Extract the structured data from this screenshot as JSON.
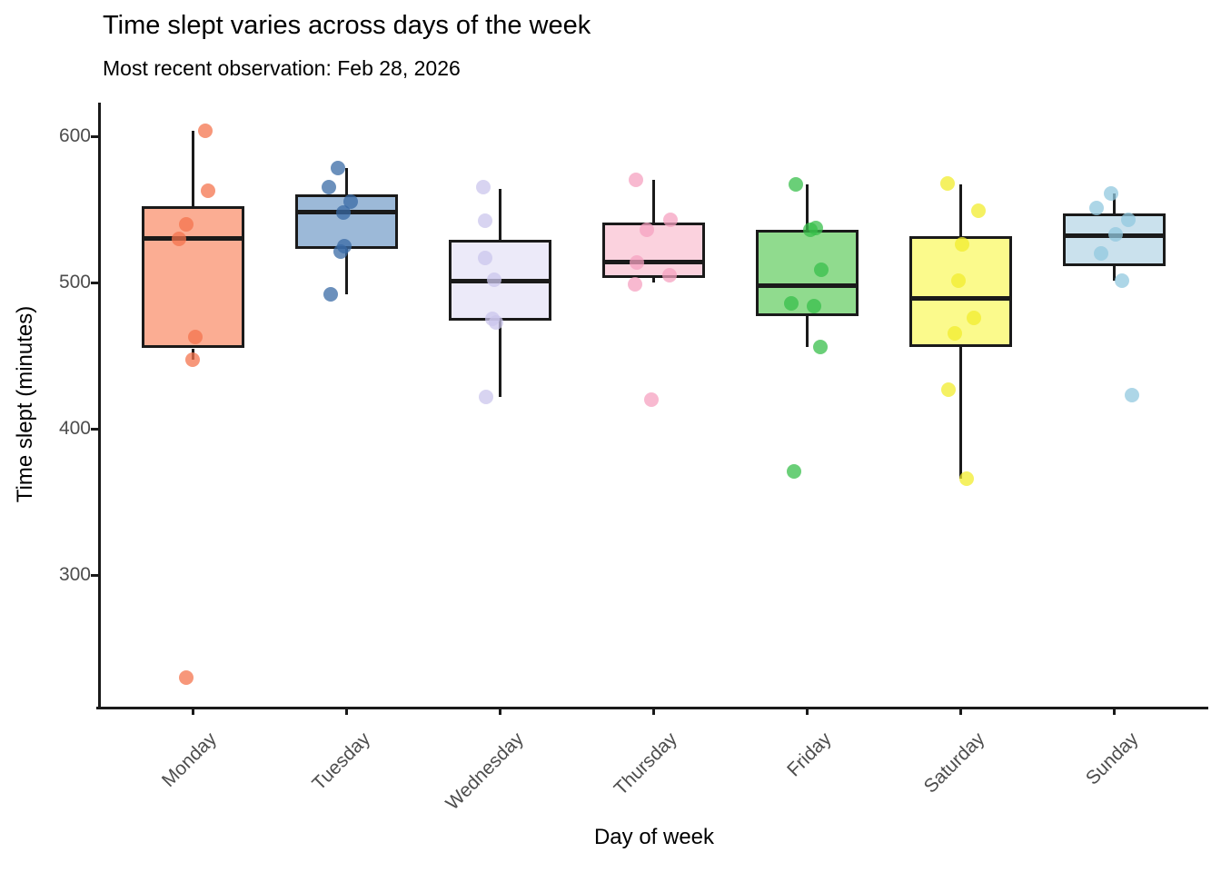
{
  "chart_data": {
    "type": "boxplot",
    "title": "Time slept varies across days of the week",
    "subtitle": "Most recent observation: Feb 28, 2026",
    "xlabel": "Day of week",
    "ylabel": "Time slept (minutes)",
    "ylim": [
      210,
      623
    ],
    "yticks": [
      300,
      400,
      500,
      600
    ],
    "grid": false,
    "legend": "none",
    "categories": [
      "Monday",
      "Tuesday",
      "Wednesday",
      "Thursday",
      "Friday",
      "Saturday",
      "Sunday"
    ],
    "series": [
      {
        "label": "Monday",
        "fill": "#FBAD93",
        "point_color": "#F4744E",
        "box": {
          "whisker_low": 447,
          "q1": 455,
          "median": 530,
          "q3": 552,
          "whisker_high": 604
        },
        "points": [
          {
            "v": 604,
            "dx": 14
          },
          {
            "v": 563,
            "dx": 17
          },
          {
            "v": 540,
            "dx": -7
          },
          {
            "v": 530,
            "dx": -15
          },
          {
            "v": 463,
            "dx": 3
          },
          {
            "v": 447,
            "dx": 0
          },
          {
            "v": 230,
            "dx": -7
          }
        ]
      },
      {
        "label": "Tuesday",
        "fill": "#9CB9D8",
        "point_color": "#3A6BA5",
        "box": {
          "whisker_low": 492,
          "q1": 523,
          "median": 548,
          "q3": 560,
          "whisker_high": 578
        },
        "points": [
          {
            "v": 578,
            "dx": -9
          },
          {
            "v": 565,
            "dx": -19
          },
          {
            "v": 555,
            "dx": 5
          },
          {
            "v": 548,
            "dx": -3
          },
          {
            "v": 525,
            "dx": -2
          },
          {
            "v": 521,
            "dx": -6
          },
          {
            "v": 492,
            "dx": -17
          }
        ]
      },
      {
        "label": "Wednesday",
        "fill": "#ECEAF9",
        "point_color": "#CBC5EC",
        "box": {
          "whisker_low": 422,
          "q1": 474,
          "median": 501,
          "q3": 529,
          "whisker_high": 564
        },
        "points": [
          {
            "v": 565,
            "dx": -18
          },
          {
            "v": 542,
            "dx": -16
          },
          {
            "v": 517,
            "dx": -16
          },
          {
            "v": 502,
            "dx": -6
          },
          {
            "v": 475,
            "dx": -8
          },
          {
            "v": 473,
            "dx": -4
          },
          {
            "v": 422,
            "dx": -15
          }
        ]
      },
      {
        "label": "Thursday",
        "fill": "#FBD2DE",
        "point_color": "#F6A2C0",
        "box": {
          "whisker_low": 500,
          "q1": 503,
          "median": 514,
          "q3": 541,
          "whisker_high": 570
        },
        "points": [
          {
            "v": 570,
            "dx": -19
          },
          {
            "v": 543,
            "dx": 19
          },
          {
            "v": 536,
            "dx": -7
          },
          {
            "v": 514,
            "dx": -18
          },
          {
            "v": 505,
            "dx": 18
          },
          {
            "v": 499,
            "dx": -20
          },
          {
            "v": 420,
            "dx": -2
          }
        ]
      },
      {
        "label": "Friday",
        "fill": "#90DB8E",
        "point_color": "#38BF4B",
        "box": {
          "whisker_low": 456,
          "q1": 477,
          "median": 498,
          "q3": 536,
          "whisker_high": 567
        },
        "points": [
          {
            "v": 567,
            "dx": -12
          },
          {
            "v": 537,
            "dx": 10
          },
          {
            "v": 536,
            "dx": 4
          },
          {
            "v": 509,
            "dx": 16
          },
          {
            "v": 486,
            "dx": -17
          },
          {
            "v": 484,
            "dx": 8
          },
          {
            "v": 456,
            "dx": 15
          },
          {
            "v": 371,
            "dx": -14
          }
        ]
      },
      {
        "label": "Saturday",
        "fill": "#FBFA8C",
        "point_color": "#F2EC2E",
        "box": {
          "whisker_low": 366,
          "q1": 456,
          "median": 489,
          "q3": 532,
          "whisker_high": 567
        },
        "points": [
          {
            "v": 568,
            "dx": -14
          },
          {
            "v": 549,
            "dx": 20
          },
          {
            "v": 526,
            "dx": 2
          },
          {
            "v": 501,
            "dx": -2
          },
          {
            "v": 476,
            "dx": 15
          },
          {
            "v": 465,
            "dx": -6
          },
          {
            "v": 427,
            "dx": -13
          },
          {
            "v": 366,
            "dx": 7
          }
        ]
      },
      {
        "label": "Sunday",
        "fill": "#CAE1ED",
        "point_color": "#92C8DF",
        "box": {
          "whisker_low": 501,
          "q1": 511,
          "median": 532,
          "q3": 547,
          "whisker_high": 561
        },
        "points": [
          {
            "v": 561,
            "dx": -3
          },
          {
            "v": 551,
            "dx": -19
          },
          {
            "v": 543,
            "dx": 16
          },
          {
            "v": 533,
            "dx": 2
          },
          {
            "v": 520,
            "dx": -14
          },
          {
            "v": 501,
            "dx": 9
          },
          {
            "v": 423,
            "dx": 20
          }
        ]
      }
    ]
  }
}
